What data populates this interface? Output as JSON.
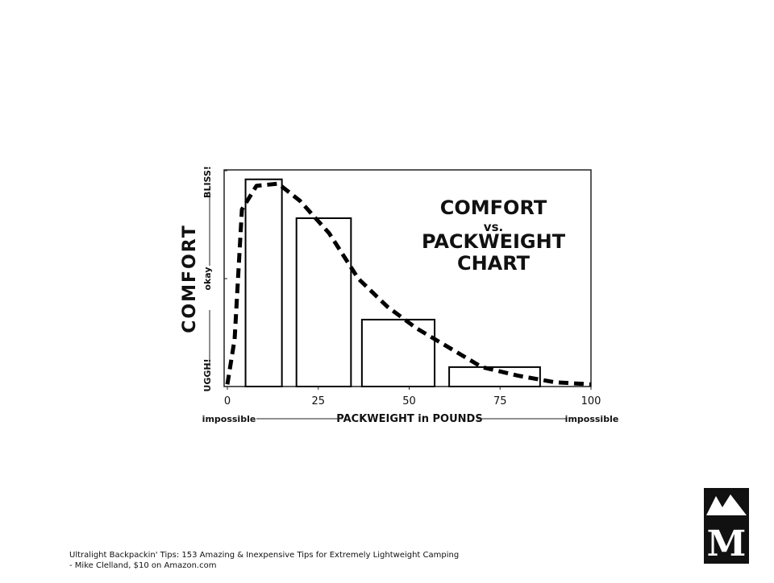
{
  "chart_data": {
    "type": "bar+line",
    "title": [
      "COMFORT",
      "vs.",
      "PACKWEIGHT",
      "CHART"
    ],
    "y_label": "COMFORT",
    "x_label": "PACKWEIGHT in POUNDS",
    "x_annotations": [
      "impossible",
      "impossible"
    ],
    "xlim": [
      0,
      100
    ],
    "xticks": [
      0,
      25,
      50,
      75,
      100
    ],
    "ylim": [
      0,
      100
    ],
    "yticks": [
      {
        "value": 0,
        "label": "UGGH!"
      },
      {
        "value": 50,
        "label": "okay"
      },
      {
        "value": 100,
        "label": "BLISS!"
      }
    ],
    "series": [
      {
        "type": "bar",
        "color": "#000000",
        "x_start": [
          5,
          19,
          37,
          61
        ],
        "x_end": [
          15,
          34,
          57,
          86
        ],
        "values": [
          96,
          78,
          31,
          9
        ]
      },
      {
        "type": "line",
        "color": "#000000",
        "style": "dashed",
        "x": [
          0,
          2,
          4,
          8,
          14,
          20,
          28,
          36,
          44,
          52,
          60,
          70,
          80,
          90,
          100
        ],
        "values": [
          1,
          22,
          82,
          93,
          94,
          86,
          71,
          50,
          37,
          27,
          19,
          9,
          5,
          2,
          1
        ]
      }
    ]
  },
  "caption": [
    "Ultralight Backpackin' Tips: 153 Amazing & Inexpensive Tips for Extremely Lightweight Camping",
    "- Mike Clelland, $10 on Amazon.com"
  ],
  "logo": "M"
}
